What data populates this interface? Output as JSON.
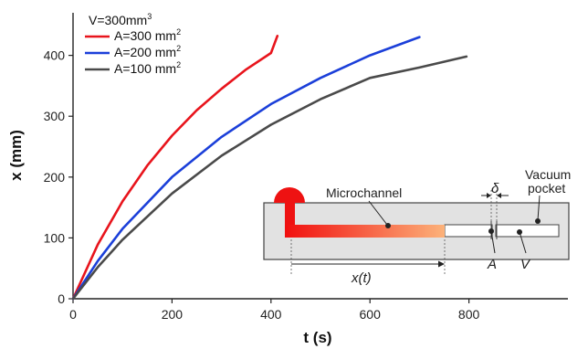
{
  "chart_data": {
    "type": "line",
    "title": "",
    "xlabel": "t (s)",
    "ylabel": "x (mm)",
    "xlim": [
      0,
      1000
    ],
    "ylim": [
      0,
      470
    ],
    "xticks": [
      0,
      200,
      400,
      600,
      800
    ],
    "yticks": [
      0,
      100,
      200,
      300,
      400
    ],
    "legend_title": "V=300mm",
    "legend_title_sup": "3",
    "legend_placement": "top-left",
    "series": [
      {
        "name": "A=300 mm",
        "name_sup": "2",
        "color": "#e8141c",
        "x": [
          0,
          50,
          100,
          150,
          200,
          250,
          300,
          350,
          400,
          413
        ],
        "y": [
          0,
          89,
          160,
          219,
          268,
          310,
          345,
          377,
          404,
          432
        ]
      },
      {
        "name": "A=200 mm",
        "name_sup": "2",
        "color": "#1b3fd9",
        "x": [
          0,
          50,
          100,
          200,
          300,
          400,
          500,
          600,
          700
        ],
        "y": [
          0,
          62,
          115,
          200,
          266,
          320,
          363,
          400,
          430
        ]
      },
      {
        "name": "A=100 mm",
        "name_sup": "2",
        "color": "#4a4a4a",
        "x": [
          0,
          50,
          100,
          200,
          300,
          400,
          500,
          600,
          700,
          795
        ],
        "y": [
          0,
          52,
          97,
          173,
          235,
          286,
          328,
          363,
          380,
          398
        ]
      }
    ]
  },
  "inset": {
    "label_microchannel": "Microchannel",
    "label_delta": "δ",
    "label_vacuum": "Vacuum",
    "label_pocket": "pocket",
    "label_xt": "x(t)",
    "label_A": "A",
    "label_V": "V"
  }
}
